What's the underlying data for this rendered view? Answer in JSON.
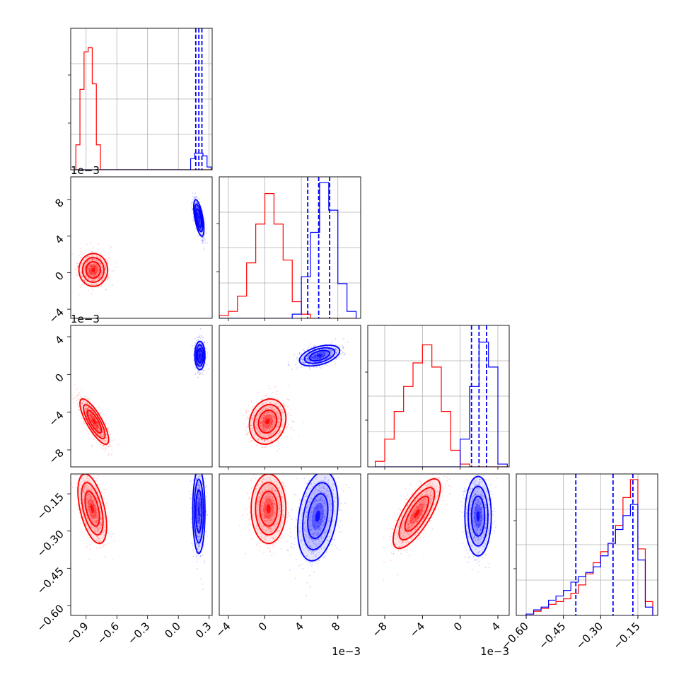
{
  "chart_data": {
    "type": "corner",
    "parameters": 4,
    "series": [
      {
        "name": "",
        "color": "#ff0000"
      },
      {
        "name": "",
        "color": "#0000ff"
      }
    ],
    "axes": [
      {
        "range": [
          -1.05,
          0.33
        ],
        "ticks": [
          -0.9,
          -0.6,
          -0.3,
          0.0,
          0.3
        ],
        "tick_labels": [
          "−0.9",
          "−0.6",
          "−0.3",
          "0.0",
          "0.3"
        ],
        "offset": ""
      },
      {
        "range": [
          -5.0,
          10.5
        ],
        "ticks": [
          -4,
          0,
          4,
          8
        ],
        "tick_labels": [
          "−4",
          "0",
          "4",
          "8"
        ],
        "offset": "1e−3"
      },
      {
        "range": [
          -9.8,
          5.2
        ],
        "ticks": [
          -8,
          -4,
          0,
          4
        ],
        "tick_labels": [
          "−8",
          "−4",
          "0",
          "4"
        ],
        "offset": "1e−3"
      },
      {
        "range": [
          -0.64,
          -0.07
        ],
        "ticks": [
          -0.6,
          -0.45,
          -0.3,
          -0.15
        ],
        "tick_labels": [
          "−0.60",
          "−0.45",
          "−0.30",
          "−0.15"
        ],
        "offset": ""
      }
    ],
    "histograms": [
      {
        "edges": [
          -1.0,
          -0.96,
          -0.92,
          -0.88,
          -0.84,
          -0.8,
          -0.76,
          -0.72,
          -0.68,
          -0.64,
          -0.6,
          0.12,
          0.16,
          0.2,
          0.24,
          0.28,
          0.32
        ],
        "red": [
          0.18,
          0.58,
          0.85,
          0.88,
          0.62,
          0.18,
          0.0,
          0.0,
          0.0,
          0.0,
          0,
          0,
          0,
          0,
          0,
          0
        ],
        "blue": [
          0,
          0,
          0,
          0,
          0,
          0,
          0,
          0,
          0,
          0,
          0,
          0.08,
          0.12,
          0.12,
          0.1,
          0.02
        ],
        "quantiles_blue": [
          0.17,
          0.2,
          0.23
        ]
      },
      {
        "edges": [
          -5.0,
          -4.0,
          -3.0,
          -2.0,
          -1.0,
          0.0,
          1.0,
          2.0,
          3.0,
          4.0,
          5.0,
          6.0,
          7.0,
          8.0,
          9.0,
          10.0
        ],
        "red": [
          0.02,
          0.05,
          0.16,
          0.4,
          0.68,
          0.9,
          0.68,
          0.42,
          0.12,
          0.03,
          0.0,
          0.0,
          0.0,
          0.0,
          0.0
        ],
        "blue": [
          0.0,
          0.0,
          0.0,
          0.0,
          0.0,
          0.0,
          0.0,
          0.0,
          0.03,
          0.3,
          0.62,
          0.98,
          0.78,
          0.25,
          0.05
        ],
        "quantiles_blue": [
          4.7,
          5.9,
          7.1
        ]
      },
      {
        "edges": [
          -9.0,
          -8.0,
          -7.0,
          -6.0,
          -5.0,
          -4.0,
          -3.0,
          -2.0,
          -1.0,
          0.0,
          1.0,
          2.0,
          3.0,
          4.0,
          5.0
        ],
        "red": [
          0.04,
          0.2,
          0.4,
          0.58,
          0.75,
          0.88,
          0.72,
          0.4,
          0.12,
          0.02,
          0.0,
          0.0,
          0.0,
          0.0
        ],
        "blue": [
          0.0,
          0.0,
          0.0,
          0.0,
          0.0,
          0.0,
          0.0,
          0.0,
          0.0,
          0.2,
          0.58,
          0.9,
          0.72,
          0.02
        ],
        "quantiles_blue": [
          1.2,
          2.0,
          2.8
        ]
      },
      {
        "edges": [
          -0.6,
          -0.57,
          -0.54,
          -0.51,
          -0.48,
          -0.45,
          -0.42,
          -0.39,
          -0.36,
          -0.33,
          -0.3,
          -0.27,
          -0.24,
          -0.21,
          -0.18,
          -0.15,
          -0.12,
          -0.09
        ],
        "red": [
          0.01,
          0.03,
          0.05,
          0.08,
          0.1,
          0.12,
          0.16,
          0.22,
          0.3,
          0.38,
          0.46,
          0.52,
          0.65,
          0.85,
          0.98,
          0.48,
          0.1
        ],
        "blue": [
          0.01,
          0.04,
          0.06,
          0.11,
          0.14,
          0.18,
          0.24,
          0.28,
          0.31,
          0.35,
          0.43,
          0.52,
          0.62,
          0.72,
          0.8,
          0.4,
          0.06
        ],
        "quantiles_blue": [
          -0.4,
          -0.25,
          -0.17
        ]
      }
    ],
    "pairs": [
      {
        "row": 1,
        "col": 0,
        "red": {
          "mean": [
            -0.83,
            0.3
          ],
          "sd": [
            0.07,
            0.9
          ],
          "rho": 0.0
        },
        "blue": {
          "mean": [
            0.2,
            6.0
          ],
          "sd": [
            0.025,
            1.0
          ],
          "rho": -0.6
        }
      },
      {
        "row": 2,
        "col": 0,
        "red": {
          "mean": [
            -0.82,
            -5.0
          ],
          "sd": [
            0.07,
            1.2
          ],
          "rho": -0.8
        },
        "blue": {
          "mean": [
            0.21,
            2.0
          ],
          "sd": [
            0.025,
            0.75
          ],
          "rho": 0.0
        }
      },
      {
        "row": 2,
        "col": 1,
        "red": {
          "mean": [
            0.3,
            -5.0
          ],
          "sd": [
            1.0,
            1.2
          ],
          "rho": 0.15
        },
        "blue": {
          "mean": [
            6.0,
            2.0
          ],
          "sd": [
            1.1,
            0.55
          ],
          "rho": 0.45
        }
      },
      {
        "row": 3,
        "col": 0,
        "red": {
          "mean": [
            -0.84,
            -0.21
          ],
          "sd": [
            0.07,
            0.07
          ],
          "rho": -0.5
        },
        "blue": {
          "mean": [
            0.2,
            -0.22
          ],
          "sd": [
            0.03,
            0.085
          ],
          "rho": 0.0
        }
      },
      {
        "row": 3,
        "col": 1,
        "red": {
          "mean": [
            0.4,
            -0.21
          ],
          "sd": [
            0.95,
            0.07
          ],
          "rho": 0.0
        },
        "blue": {
          "mean": [
            5.8,
            -0.24
          ],
          "sd": [
            1.1,
            0.09
          ],
          "rho": 0.3
        }
      },
      {
        "row": 3,
        "col": 2,
        "red": {
          "mean": [
            -4.6,
            -0.23
          ],
          "sd": [
            1.25,
            0.07
          ],
          "rho": 0.75
        },
        "blue": {
          "mean": [
            1.9,
            -0.24
          ],
          "sd": [
            0.7,
            0.08
          ],
          "rho": 0.0
        }
      }
    ],
    "contour_levels_sigma": [
      1,
      1.5,
      2
    ],
    "grid": true,
    "legend": "none"
  }
}
